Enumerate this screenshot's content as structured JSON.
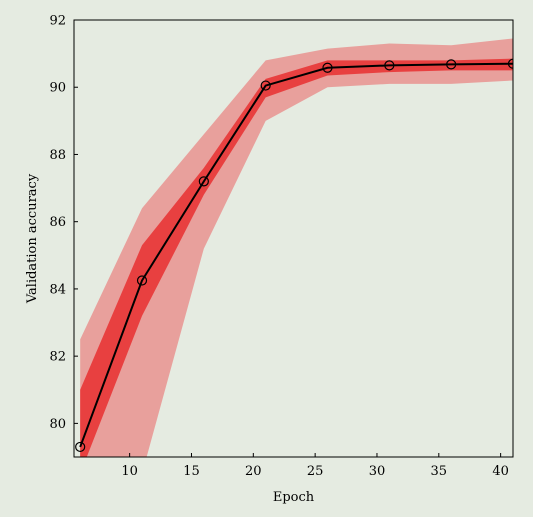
{
  "chart_data": {
    "type": "line",
    "title": "",
    "xlabel": "Epoch",
    "ylabel": "Validation accuracy",
    "xlim": [
      5.5,
      41
    ],
    "ylim": [
      79,
      92
    ],
    "x_ticks": [
      10,
      15,
      20,
      25,
      30,
      35,
      40
    ],
    "y_ticks": [
      80,
      82,
      84,
      86,
      88,
      90,
      92
    ],
    "grid": false,
    "legend": "none",
    "series": [
      {
        "x": [
          6,
          11,
          16,
          21,
          26,
          31,
          36,
          41
        ],
        "y": [
          79.3,
          84.25,
          87.2,
          90.05,
          90.58,
          90.65,
          90.68,
          90.7
        ],
        "marker": "circle",
        "color": "#000000"
      }
    ],
    "bands": [
      {
        "level": "outer",
        "color": "#e8a09c",
        "x": [
          6,
          11,
          16,
          21,
          26,
          31,
          36,
          41
        ],
        "lower": [
          77.0,
          78.5,
          85.2,
          89.0,
          90.0,
          90.1,
          90.1,
          90.2
        ],
        "upper": [
          82.5,
          86.4,
          88.6,
          90.8,
          91.15,
          91.3,
          91.25,
          91.45
        ]
      },
      {
        "level": "inner",
        "color": "#e84040",
        "x": [
          6,
          11,
          16,
          21,
          26,
          31,
          36,
          41
        ],
        "lower": [
          78.5,
          83.2,
          86.8,
          89.7,
          90.35,
          90.45,
          90.5,
          90.5
        ],
        "upper": [
          81.0,
          85.3,
          87.6,
          90.25,
          90.8,
          90.8,
          90.8,
          90.85
        ]
      }
    ]
  }
}
